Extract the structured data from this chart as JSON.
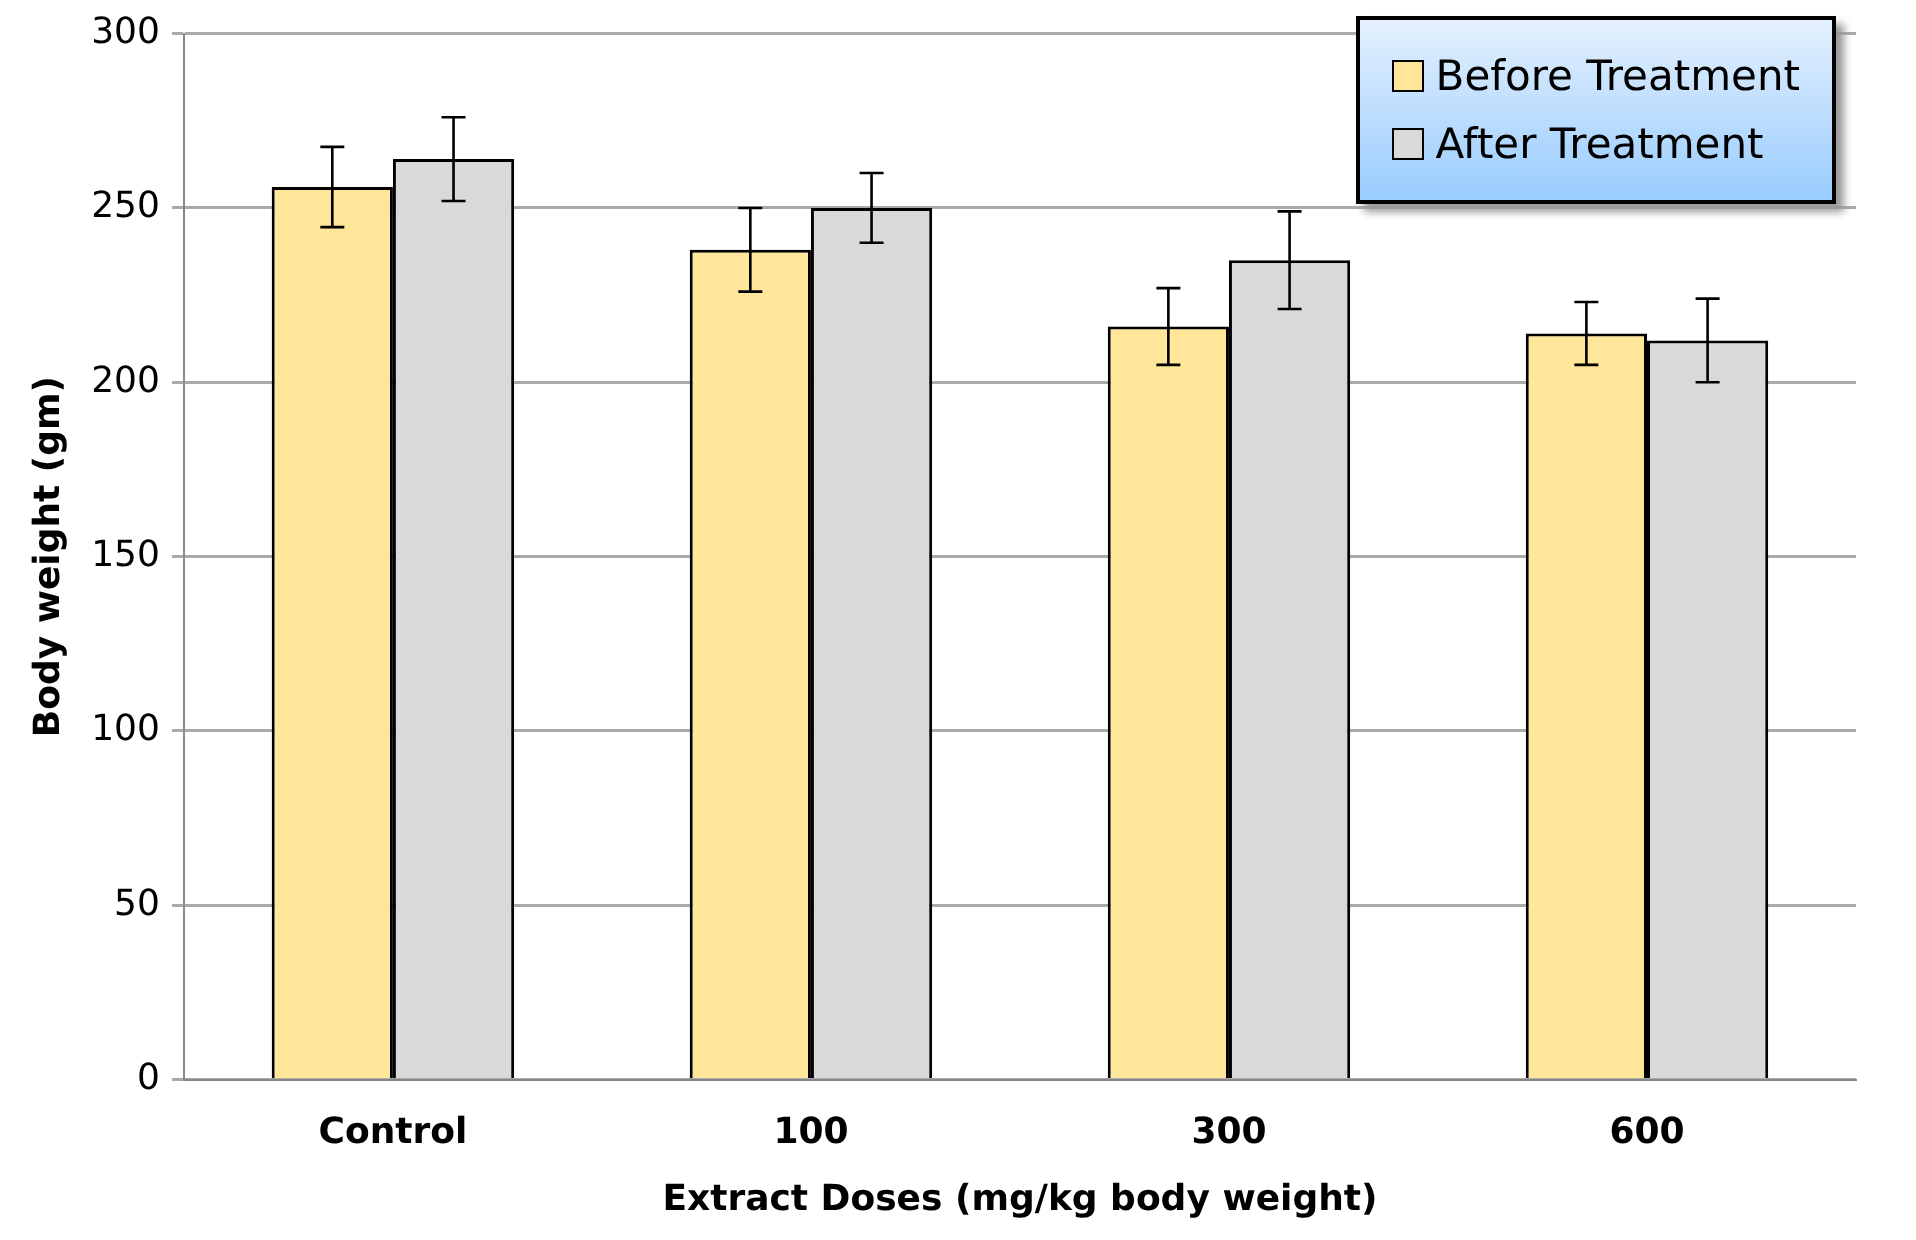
{
  "chart_data": {
    "type": "bar",
    "xlabel": "Extract Doses (mg/kg body weight)",
    "ylabel": "Body weight (gm)",
    "categories": [
      "Control",
      "100",
      "300",
      "600"
    ],
    "series": [
      {
        "name": "Before Treatment",
        "color": "#ffe699",
        "values": [
          256,
          238,
          216,
          214
        ],
        "errors": [
          11.5,
          12,
          11,
          9
        ]
      },
      {
        "name": "After Treatment",
        "color": "#d9d9d9",
        "values": [
          264,
          250,
          235,
          212
        ],
        "errors": [
          12,
          10,
          14,
          12
        ]
      }
    ],
    "ylim": [
      0,
      300
    ],
    "yticks": [
      0,
      50,
      100,
      150,
      200,
      250,
      300
    ],
    "grid": "y",
    "legend": "top right"
  }
}
